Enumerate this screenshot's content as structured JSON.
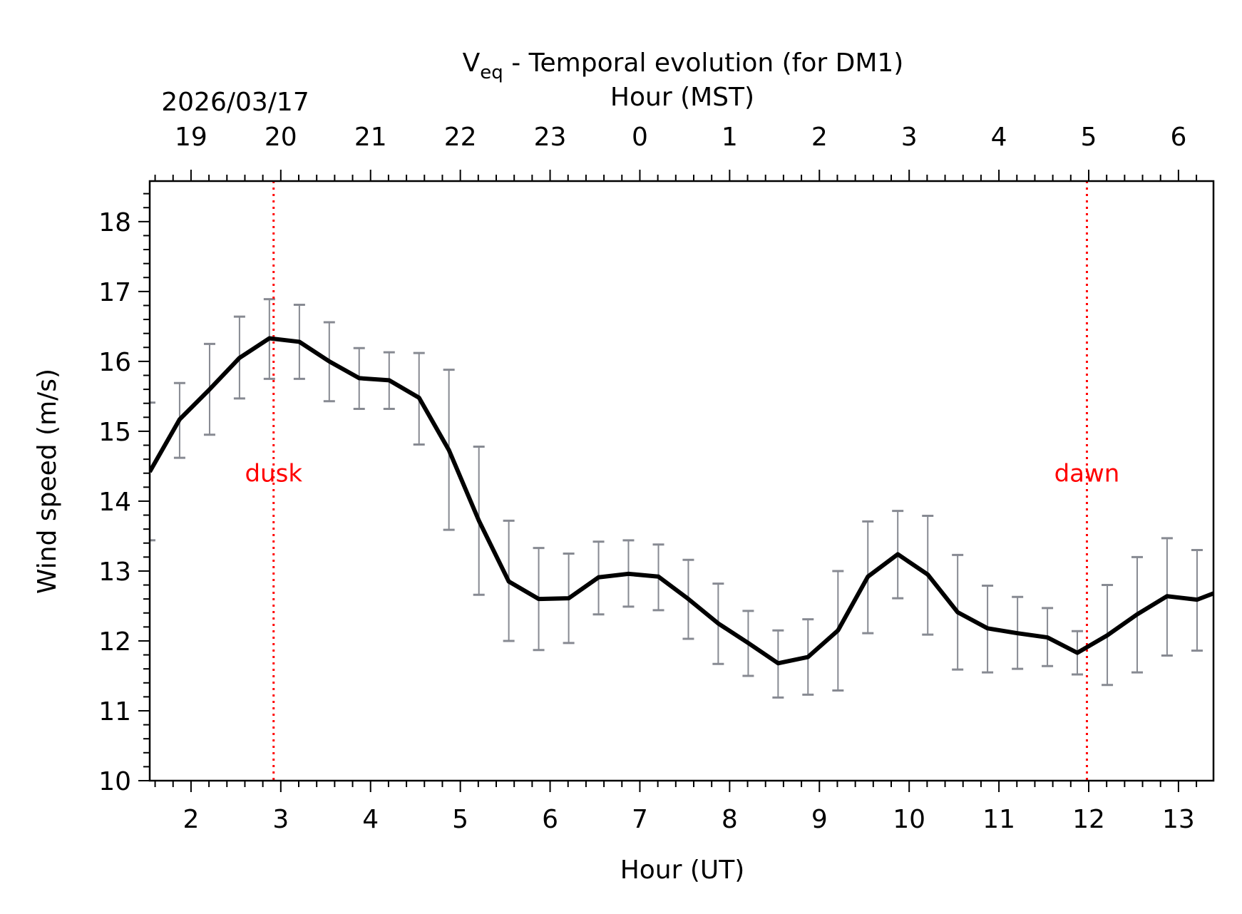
{
  "chart_data": {
    "type": "line",
    "title_main": "V",
    "title_sub": "eq",
    "title_rest": " - Temporal evolution (for DM1)",
    "xlabel": "Hour (UT)",
    "ylabel": "Wind speed (m/s)",
    "top_xlabel": "Hour (MST)",
    "date_label": "2026/03/17",
    "xlim": [
      1.54,
      13.39
    ],
    "ylim": [
      10,
      18.58
    ],
    "x_ticks": [
      2,
      3,
      4,
      5,
      6,
      7,
      8,
      9,
      10,
      11,
      12,
      13
    ],
    "x_tick_labels": [
      "2",
      "3",
      "4",
      "5",
      "6",
      "7",
      "8",
      "9",
      "10",
      "11",
      "12",
      "13"
    ],
    "x_minor_step": 0.2,
    "y_ticks": [
      10,
      11,
      12,
      13,
      14,
      15,
      16,
      17,
      18
    ],
    "y_tick_labels": [
      "10",
      "11",
      "12",
      "13",
      "14",
      "15",
      "16",
      "17",
      "18"
    ],
    "y_minor_step": 0.2,
    "top_x_ticks": [
      2,
      3,
      4,
      5,
      6,
      7,
      8,
      9,
      10,
      11,
      12,
      13
    ],
    "top_x_tick_labels": [
      "19",
      "20",
      "21",
      "22",
      "23",
      "0",
      "1",
      "2",
      "3",
      "4",
      "5",
      "6"
    ],
    "grid": false,
    "series": [
      {
        "name": "Veq",
        "color": "#000000",
        "x": [
          1.54,
          1.873,
          2.207,
          2.54,
          2.873,
          3.207,
          3.54,
          3.873,
          4.207,
          4.54,
          4.873,
          5.207,
          5.54,
          5.873,
          6.207,
          6.54,
          6.873,
          7.207,
          7.54,
          7.873,
          8.207,
          8.54,
          8.873,
          9.207,
          9.54,
          9.873,
          10.207,
          10.54,
          10.873,
          11.207,
          11.54,
          11.873,
          12.207,
          12.54,
          12.873,
          13.207
        ],
        "y": [
          14.42,
          15.17,
          15.6,
          16.05,
          16.33,
          16.28,
          16.0,
          15.76,
          15.73,
          15.48,
          14.73,
          13.72,
          12.85,
          12.6,
          12.61,
          12.91,
          12.96,
          12.92,
          12.6,
          12.25,
          11.97,
          11.68,
          11.77,
          12.15,
          12.92,
          13.24,
          12.95,
          12.41,
          12.18,
          12.11,
          12.05,
          11.83,
          12.08,
          12.38,
          12.64,
          12.59
        ],
        "y_end": 12.68,
        "err_low": [
          13.44,
          14.62,
          14.95,
          15.47,
          15.75,
          15.75,
          15.43,
          15.32,
          15.32,
          14.81,
          13.59,
          12.66,
          12.0,
          11.87,
          11.97,
          12.38,
          12.49,
          12.44,
          12.03,
          11.67,
          11.5,
          11.19,
          11.23,
          11.29,
          12.11,
          12.61,
          12.09,
          11.59,
          11.55,
          11.6,
          11.64,
          11.52,
          11.37,
          11.55,
          11.79,
          11.86
        ],
        "err_high": [
          15.41,
          15.69,
          16.25,
          16.64,
          16.89,
          16.81,
          16.56,
          16.19,
          16.13,
          16.12,
          15.88,
          14.78,
          13.72,
          13.33,
          13.25,
          13.42,
          13.44,
          13.38,
          13.16,
          12.82,
          12.43,
          12.15,
          12.31,
          13.0,
          13.71,
          13.86,
          13.79,
          13.23,
          12.79,
          12.63,
          12.47,
          12.14,
          12.8,
          13.2,
          13.47,
          13.3
        ]
      }
    ],
    "errorbar_color": "#878a92",
    "vlines": [
      {
        "x": 2.92,
        "label": "dusk",
        "label_y": 14.28,
        "color": "#ff0000"
      },
      {
        "x": 11.98,
        "label": "dawn",
        "label_y": 14.28,
        "color": "#ff0000"
      }
    ]
  }
}
